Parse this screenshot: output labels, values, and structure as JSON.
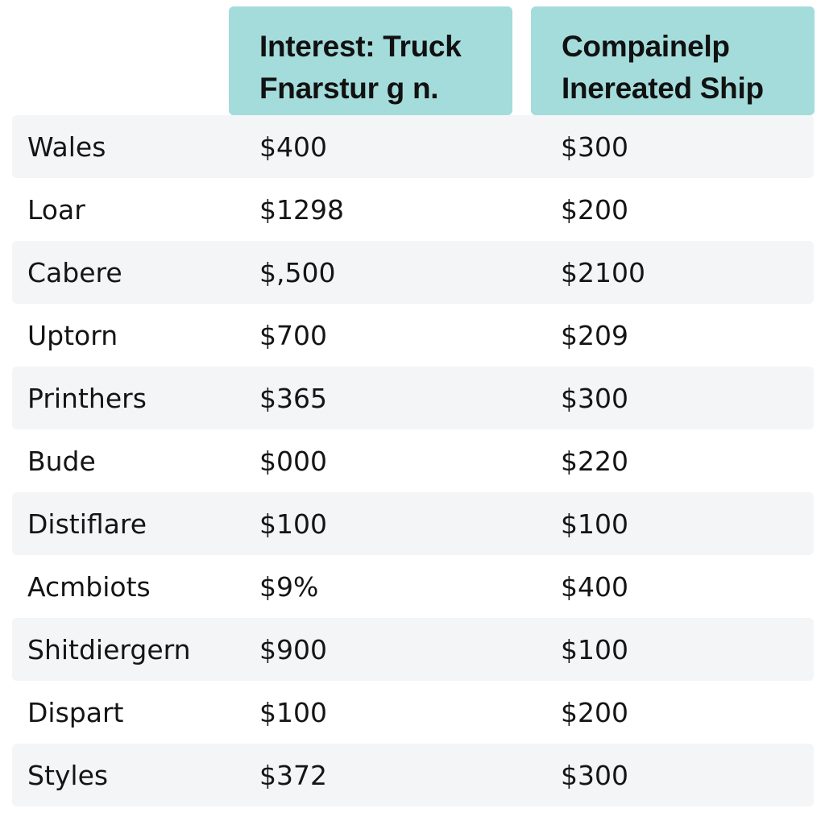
{
  "table": {
    "header_color": "#a3dcdb",
    "row_shade_color": "#f3f5f6",
    "columns": [
      {
        "label": "",
        "lines": []
      },
      {
        "label": "Interest: Truck Fnarstur g n.",
        "lines": [
          "Interest: Truck",
          "Fnarstur g n."
        ]
      },
      {
        "label": "Compainelp Inereated Ship",
        "lines": [
          "Compainelp",
          "Inereated Ship"
        ]
      }
    ],
    "rows": [
      {
        "name": "Wales",
        "v1": "$400",
        "v2": "$300"
      },
      {
        "name": "Loar",
        "v1": "$1298",
        "v2": "$200"
      },
      {
        "name": "Cabere",
        "v1": "$,500",
        "v2": "$2100"
      },
      {
        "name": "Uptorn",
        "v1": "$700",
        "v2": "$209"
      },
      {
        "name": "Printhers",
        "v1": "$365",
        "v2": "$300"
      },
      {
        "name": "Bude",
        "v1": "$000",
        "v2": "$220"
      },
      {
        "name": "Distiflare",
        "v1": "$100",
        "v2": "$100"
      },
      {
        "name": "Acmbiots",
        "v1": "$9%",
        "v2": "$400"
      },
      {
        "name": "Shitdiergern",
        "v1": "$900",
        "v2": "$100"
      },
      {
        "name": "Dispart",
        "v1": "$100",
        "v2": "$200"
      },
      {
        "name": "Styles",
        "v1": "$372",
        "v2": "$300"
      }
    ]
  }
}
